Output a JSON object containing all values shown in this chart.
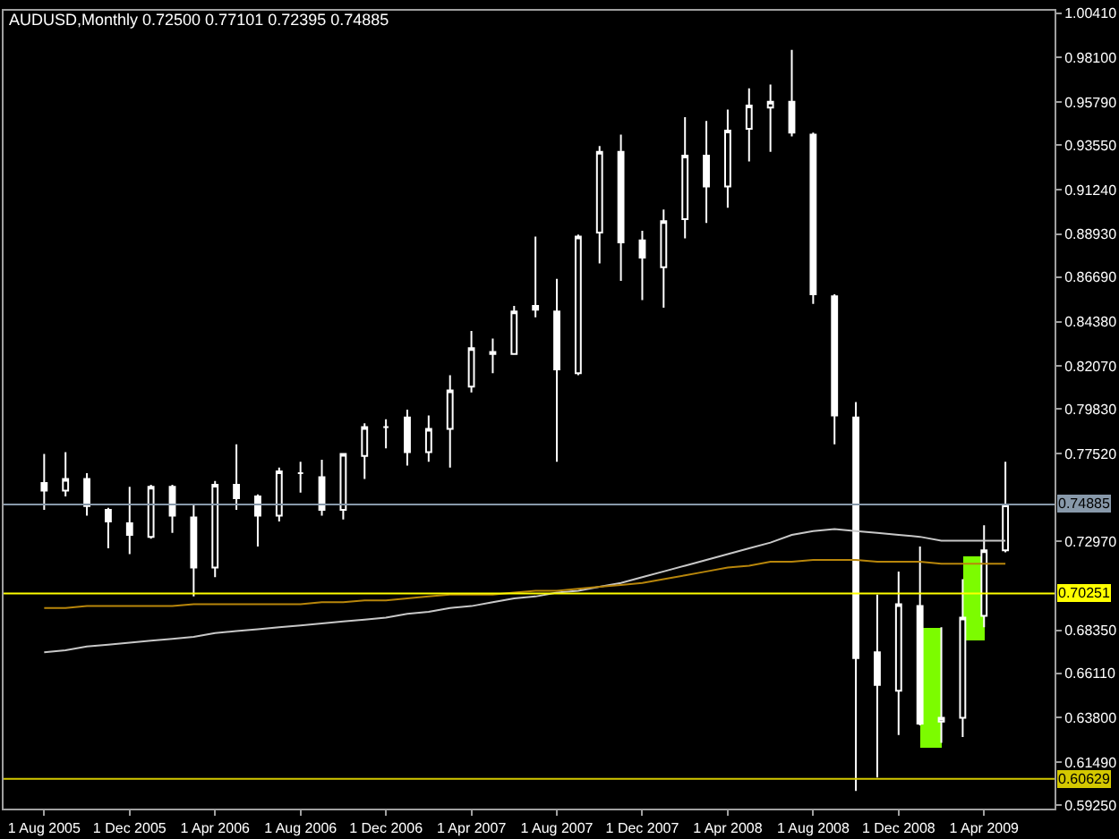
{
  "chart_data": {
    "type": "candlestick",
    "title": "AUDUSD,Monthly 0.72500 0.77101 0.72395 0.74885",
    "color": "#ffffff",
    "categories": [
      "1 Aug 2005",
      null,
      null,
      null,
      "1 Dec 2005",
      null,
      null,
      null,
      "1 Apr 2006",
      null,
      null,
      null,
      "1 Aug 2006",
      null,
      null,
      null,
      "1 Dec 2006",
      null,
      null,
      null,
      "1 Apr 2007",
      null,
      null,
      null,
      "1 Aug 2007",
      null,
      null,
      null,
      "1 Dec 2007",
      null,
      null,
      null,
      "1 Apr 2008",
      null,
      null,
      null,
      "1 Aug 2008",
      null,
      null,
      null,
      "1 Dec 2008",
      null,
      null,
      null,
      "1 Apr 2009",
      null
    ],
    "ohlc": [
      [
        0.76,
        0.775,
        0.746,
        0.756
      ],
      [
        0.756,
        0.776,
        0.753,
        0.762
      ],
      [
        0.762,
        0.765,
        0.743,
        0.748
      ],
      [
        0.746,
        0.747,
        0.726,
        0.74
      ],
      [
        0.739,
        0.758,
        0.723,
        0.733
      ],
      [
        0.732,
        0.759,
        0.731,
        0.758
      ],
      [
        0.758,
        0.759,
        0.734,
        0.743
      ],
      [
        0.742,
        0.749,
        0.701,
        0.716
      ],
      [
        0.716,
        0.761,
        0.711,
        0.759
      ],
      [
        0.759,
        0.78,
        0.746,
        0.752
      ],
      [
        0.753,
        0.754,
        0.727,
        0.743
      ],
      [
        0.743,
        0.768,
        0.74,
        0.766
      ],
      [
        0.765,
        0.771,
        0.755,
        0.765
      ],
      [
        0.763,
        0.772,
        0.743,
        0.746
      ],
      [
        0.746,
        0.775,
        0.741,
        0.775
      ],
      [
        0.774,
        0.791,
        0.762,
        0.789
      ],
      [
        0.789,
        0.793,
        0.778,
        0.789
      ],
      [
        0.794,
        0.798,
        0.769,
        0.776
      ],
      [
        0.776,
        0.795,
        0.771,
        0.788
      ],
      [
        0.788,
        0.816,
        0.768,
        0.808
      ],
      [
        0.81,
        0.839,
        0.807,
        0.83
      ],
      [
        0.827,
        0.835,
        0.817,
        0.828
      ],
      [
        0.827,
        0.852,
        0.827,
        0.849
      ],
      [
        0.852,
        0.888,
        0.846,
        0.85
      ],
      [
        0.849,
        0.866,
        0.771,
        0.819
      ],
      [
        0.817,
        0.889,
        0.816,
        0.888
      ],
      [
        0.89,
        0.935,
        0.874,
        0.932
      ],
      [
        0.932,
        0.941,
        0.865,
        0.885
      ],
      [
        0.886,
        0.891,
        0.855,
        0.877
      ],
      [
        0.872,
        0.902,
        0.851,
        0.896
      ],
      [
        0.897,
        0.95,
        0.887,
        0.93
      ],
      [
        0.93,
        0.948,
        0.895,
        0.914
      ],
      [
        0.914,
        0.954,
        0.903,
        0.943
      ],
      [
        0.944,
        0.965,
        0.927,
        0.956
      ],
      [
        0.955,
        0.967,
        0.932,
        0.958
      ],
      [
        0.958,
        0.985,
        0.94,
        0.942
      ],
      [
        0.941,
        0.942,
        0.853,
        0.858
      ],
      [
        0.857,
        0.858,
        0.78,
        0.795
      ],
      [
        0.794,
        0.802,
        0.6,
        0.669
      ],
      [
        0.672,
        0.702,
        0.607,
        0.655
      ],
      [
        0.652,
        0.714,
        0.629,
        0.697
      ],
      [
        0.696,
        0.727,
        0.634,
        0.635
      ],
      [
        0.636,
        0.685,
        0.625,
        0.638
      ],
      [
        0.638,
        0.71,
        0.628,
        0.69
      ],
      [
        0.691,
        0.738,
        0.685,
        0.725
      ],
      [
        0.725,
        0.77101,
        0.72395,
        0.74885
      ]
    ],
    "series": [
      {
        "type": "bar",
        "color": "#7cfc00",
        "base": [
          null,
          null,
          null,
          null,
          null,
          null,
          null,
          null,
          null,
          null,
          null,
          null,
          null,
          null,
          null,
          null,
          null,
          null,
          null,
          null,
          null,
          null,
          null,
          null,
          null,
          null,
          null,
          null,
          null,
          null,
          null,
          null,
          null,
          null,
          null,
          null,
          null,
          null,
          null,
          null,
          null,
          0.622,
          null,
          0.678,
          null,
          null
        ],
        "values": [
          null,
          null,
          null,
          null,
          null,
          null,
          null,
          null,
          null,
          null,
          null,
          null,
          null,
          null,
          null,
          null,
          null,
          null,
          null,
          null,
          null,
          null,
          null,
          null,
          null,
          null,
          null,
          null,
          null,
          null,
          null,
          null,
          null,
          null,
          null,
          null,
          null,
          null,
          null,
          null,
          null,
          0.063,
          null,
          0.044,
          null,
          null
        ]
      },
      {
        "type": "line",
        "color": "#c8c8c8",
        "values": [
          0.672,
          0.673,
          0.675,
          0.676,
          0.677,
          0.678,
          0.679,
          0.68,
          0.682,
          0.683,
          0.684,
          0.685,
          0.686,
          0.687,
          0.688,
          0.689,
          0.69,
          0.692,
          0.693,
          0.695,
          0.696,
          0.698,
          0.7,
          0.701,
          0.703,
          0.704,
          0.706,
          0.708,
          0.711,
          0.714,
          0.717,
          0.72,
          0.723,
          0.726,
          0.729,
          0.733,
          0.735,
          0.736,
          0.735,
          0.734,
          0.733,
          0.732,
          0.73,
          0.73,
          0.73,
          0.73
        ]
      },
      {
        "type": "line",
        "color": "#b8860b",
        "values": [
          0.695,
          0.695,
          0.696,
          0.696,
          0.696,
          0.696,
          0.696,
          0.697,
          0.697,
          0.697,
          0.697,
          0.697,
          0.697,
          0.698,
          0.698,
          0.699,
          0.699,
          0.7,
          0.701,
          0.702,
          0.702,
          0.702,
          0.703,
          0.704,
          0.704,
          0.705,
          0.706,
          0.707,
          0.708,
          0.71,
          0.712,
          0.714,
          0.716,
          0.717,
          0.719,
          0.719,
          0.72,
          0.72,
          0.72,
          0.719,
          0.719,
          0.719,
          0.718,
          0.718,
          0.718,
          0.718
        ]
      }
    ],
    "ylim": [
      0.5908,
      1.0053
    ],
    "yticks": [
      {
        "value": 0.5925,
        "label": "0.59250"
      },
      {
        "value": 0.6149,
        "label": "0.61490"
      },
      {
        "value": 0.638,
        "label": "0.63800"
      },
      {
        "value": 0.6611,
        "label": "0.66110"
      },
      {
        "value": 0.6835,
        "label": "0.68350"
      },
      {
        "value": 0.7297,
        "label": "0.72970"
      },
      {
        "value": 0.7752,
        "label": "0.77520"
      },
      {
        "value": 0.7983,
        "label": "0.79830"
      },
      {
        "value": 0.8207,
        "label": "0.82070"
      },
      {
        "value": 0.8438,
        "label": "0.84380"
      },
      {
        "value": 0.8669,
        "label": "0.86690"
      },
      {
        "value": 0.8893,
        "label": "0.88930"
      },
      {
        "value": 0.9124,
        "label": "0.91240"
      },
      {
        "value": 0.9355,
        "label": "0.93550"
      },
      {
        "value": 0.9579,
        "label": "0.95790"
      },
      {
        "value": 0.981,
        "label": "0.98100"
      },
      {
        "value": 1.0041,
        "label": "1.00410"
      }
    ],
    "ref_lines": [
      {
        "axis": "y",
        "value": 0.74885,
        "label": "0.74885",
        "color": "#8899aa"
      },
      {
        "axis": "y",
        "value": 0.70251,
        "label": "0.70251",
        "color": "#ffff00"
      },
      {
        "axis": "y",
        "value": 0.60629,
        "label": "0.60629",
        "color": "#d4c800"
      }
    ],
    "grid": false
  }
}
